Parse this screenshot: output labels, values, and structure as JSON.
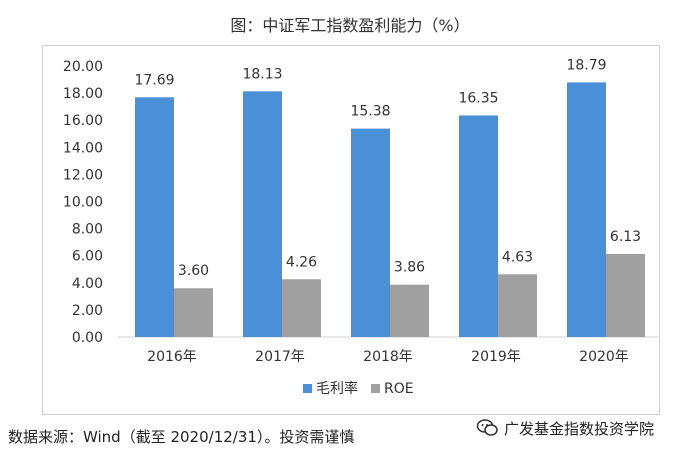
{
  "title": "图：中证军工指数盈利能力（%）",
  "source_note": "数据来源：Wind（截至 2020/12/31）。投资需谨慎",
  "watermark": {
    "text": "广发基金指数投资学院",
    "icon": "wechat-icon"
  },
  "colors": {
    "series1": "#4a90d9",
    "series2": "#a0a0a0"
  },
  "chart_data": {
    "type": "bar",
    "categories": [
      "2016年",
      "2017年",
      "2018年",
      "2019年",
      "2020年"
    ],
    "series": [
      {
        "name": "毛利率",
        "values": [
          17.69,
          18.13,
          15.38,
          16.35,
          18.79
        ],
        "labels": [
          "17.69",
          "18.13",
          "15.38",
          "16.35",
          "18.79"
        ]
      },
      {
        "name": "ROE",
        "values": [
          3.6,
          4.26,
          3.86,
          4.63,
          6.13
        ],
        "labels": [
          "3.60",
          "4.26",
          "3.86",
          "4.63",
          "6.13"
        ]
      }
    ],
    "yticks": [
      "0.00",
      "2.00",
      "4.00",
      "6.00",
      "8.00",
      "10.00",
      "12.00",
      "14.00",
      "16.00",
      "18.00",
      "20.00"
    ],
    "ylim": [
      0,
      20
    ],
    "grid": false,
    "legend": "bottom-center"
  }
}
